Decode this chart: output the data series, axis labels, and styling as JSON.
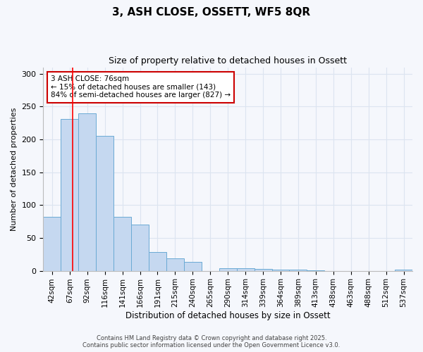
{
  "title": "3, ASH CLOSE, OSSETT, WF5 8QR",
  "subtitle": "Size of property relative to detached houses in Ossett",
  "xlabel": "Distribution of detached houses by size in Ossett",
  "ylabel": "Number of detached properties",
  "bar_labels": [
    "42sqm",
    "67sqm",
    "92sqm",
    "116sqm",
    "141sqm",
    "166sqm",
    "191sqm",
    "215sqm",
    "240sqm",
    "265sqm",
    "290sqm",
    "314sqm",
    "339sqm",
    "364sqm",
    "389sqm",
    "413sqm",
    "438sqm",
    "463sqm",
    "488sqm",
    "512sqm",
    "537sqm"
  ],
  "bar_values": [
    82,
    231,
    240,
    206,
    82,
    70,
    28,
    19,
    13,
    0,
    4,
    4,
    3,
    2,
    2,
    1,
    0,
    0,
    0,
    0,
    2
  ],
  "bar_color": "#c5d8f0",
  "bar_edge_color": "#6aaad4",
  "background_color": "#f5f7fc",
  "grid_color": "#dce4f0",
  "red_line_x": 1.18,
  "annotation_text": "3 ASH CLOSE: 76sqm\n← 15% of detached houses are smaller (143)\n84% of semi-detached houses are larger (827) →",
  "annotation_box_color": "#ffffff",
  "annotation_box_edge": "#cc0000",
  "ylim": [
    0,
    310
  ],
  "yticks": [
    0,
    50,
    100,
    150,
    200,
    250,
    300
  ],
  "footer_text": "Contains HM Land Registry data © Crown copyright and database right 2025.\nContains public sector information licensed under the Open Government Licence v3.0."
}
